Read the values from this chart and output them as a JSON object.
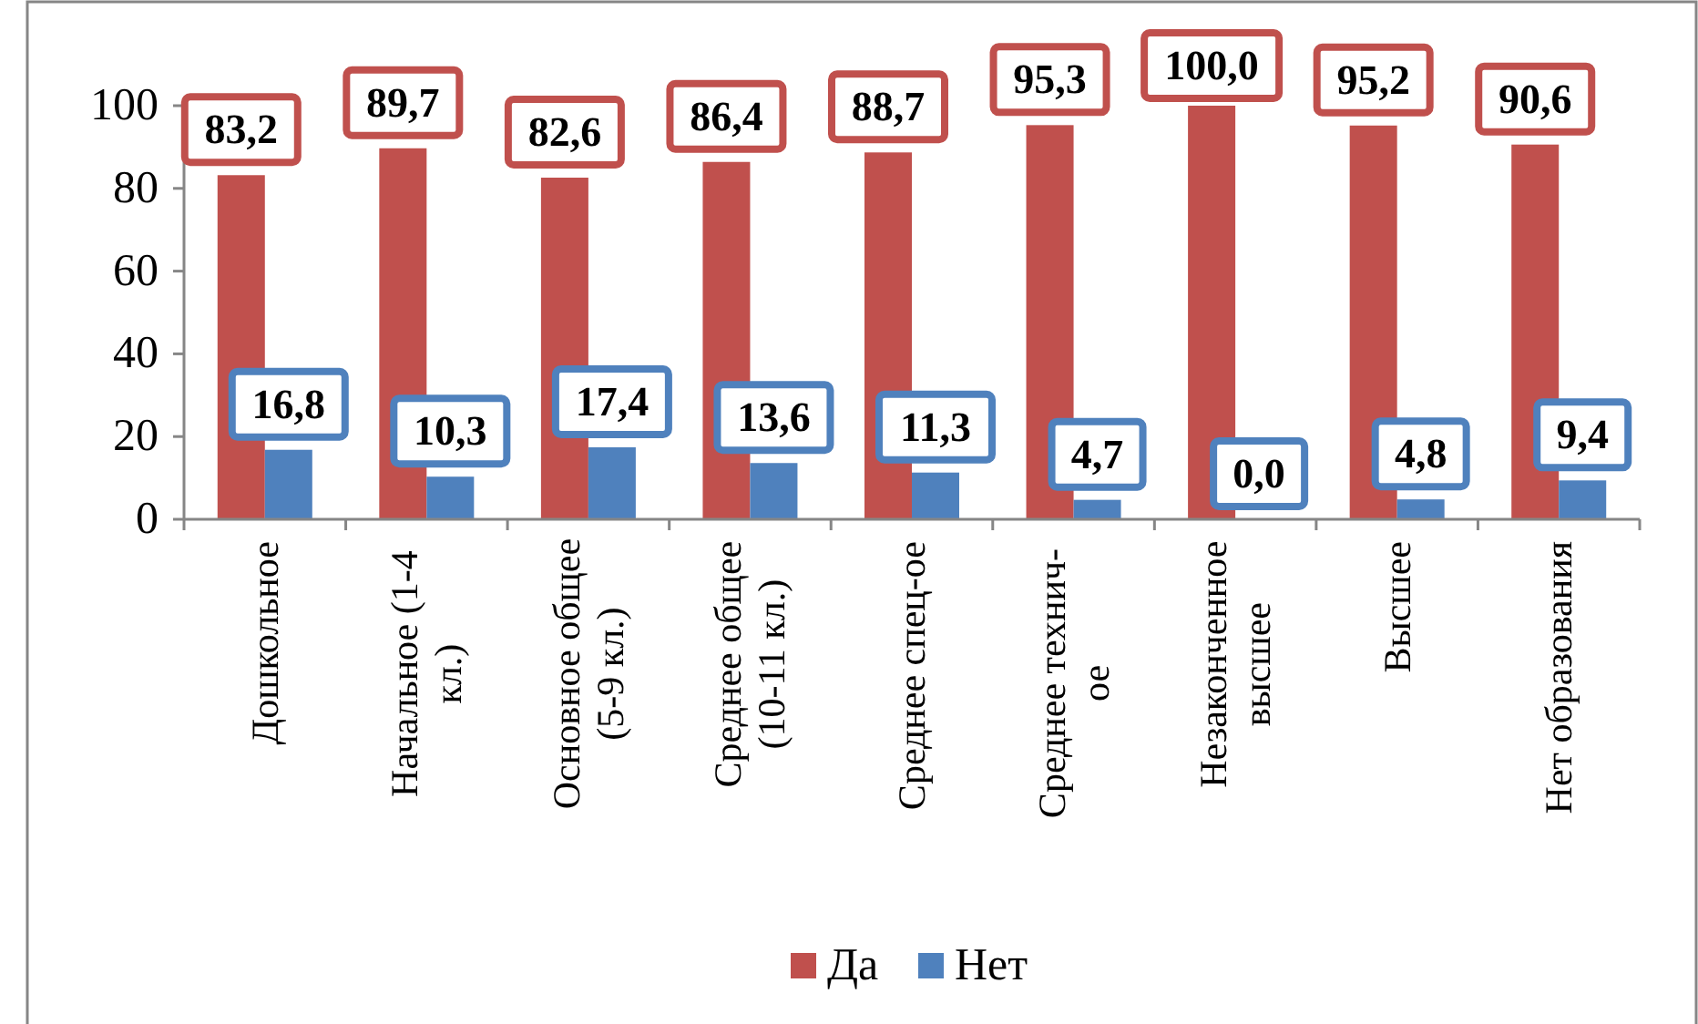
{
  "chart_data": {
    "type": "bar",
    "categories": [
      "Дошкольное",
      "Начальное (1-4 кл.)",
      "Основное общее (5-9 кл.)",
      "Среднее общее (10-11 кл.)",
      "Среднее спец-ое",
      "Среднее технич-ое",
      "Незаконченное высшее",
      "Высшее",
      "Нет образования"
    ],
    "series": [
      {
        "name": "Да",
        "color": "#c0504d",
        "values": [
          83.2,
          89.7,
          82.6,
          86.4,
          88.7,
          95.3,
          100.0,
          95.2,
          90.6
        ],
        "value_labels": [
          "83,2",
          "89,7",
          "82,6",
          "86,4",
          "88,7",
          "95,3",
          "100,0",
          "95,2",
          "90,6"
        ]
      },
      {
        "name": "Нет",
        "color": "#4f81bd",
        "values": [
          16.8,
          10.3,
          17.4,
          13.6,
          11.3,
          4.7,
          0.0,
          4.8,
          9.4
        ],
        "value_labels": [
          "16,8",
          "10,3",
          "17,4",
          "13,6",
          "11,3",
          "4,7",
          "0,0",
          "4,8",
          "9,4"
        ]
      }
    ],
    "ylim": [
      0,
      100
    ],
    "yticks": [
      0,
      20,
      40,
      60,
      80,
      100
    ],
    "grid": false,
    "legend": "bottom"
  }
}
